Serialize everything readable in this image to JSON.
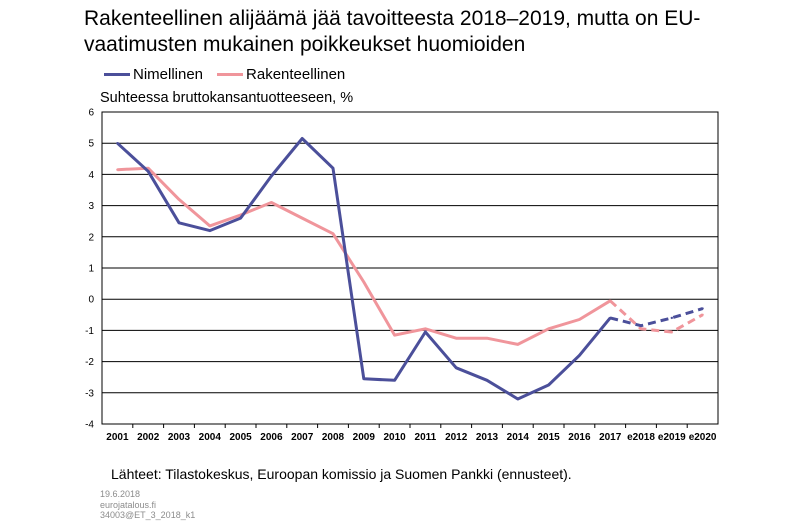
{
  "title": "Rakenteellinen alijäämä jää tavoitteesta 2018–2019, mutta on EU-vaatimusten mukainen poikkeukset huomioiden",
  "legend": [
    {
      "name": "Nimellinen",
      "color": "#4b4f9a"
    },
    {
      "name": "Rakenteellinen",
      "color": "#f0959b"
    }
  ],
  "unit_label": "Suhteessa bruttokansantuotteeseen, %",
  "source": "Lähteet: Tilastokeskus, Euroopan komissio ja Suomen Pankki (ennusteet).",
  "meta": {
    "date": "19.6.2018",
    "site": "eurojatalous.fi",
    "code": "34003@ET_3_2018_k1"
  },
  "chart_data": {
    "type": "line",
    "categories": [
      "2001",
      "2002",
      "2003",
      "2004",
      "2005",
      "2006",
      "2007",
      "2008",
      "2009",
      "2010",
      "2011",
      "2012",
      "2013",
      "2014",
      "2015",
      "2016",
      "2017",
      "e2018",
      "e2019",
      "e2020"
    ],
    "ylim": [
      -4,
      6
    ],
    "yticks": [
      -4,
      -3,
      -2,
      -1,
      0,
      1,
      2,
      3,
      4,
      5,
      6
    ],
    "grid": true,
    "legend_position": "top-left",
    "forecast_from_category": "2017",
    "forecast_style": "dashed",
    "series": [
      {
        "name": "Nimellinen",
        "color": "#4b4f9a",
        "values": [
          5.0,
          4.1,
          2.45,
          2.2,
          2.6,
          3.95,
          5.15,
          4.2,
          -2.55,
          -2.6,
          -1.05,
          -2.2,
          -2.6,
          -3.2,
          -2.75,
          -1.8,
          -0.6,
          -0.85,
          -0.6,
          -0.3
        ]
      },
      {
        "name": "Rakenteellinen",
        "color": "#f0959b",
        "values": [
          4.15,
          4.2,
          3.2,
          2.35,
          2.7,
          3.1,
          2.6,
          2.1,
          0.55,
          -1.15,
          -0.95,
          -1.25,
          -1.25,
          -1.45,
          -0.95,
          -0.65,
          -0.05,
          -0.95,
          -1.05,
          -0.5
        ]
      }
    ]
  }
}
